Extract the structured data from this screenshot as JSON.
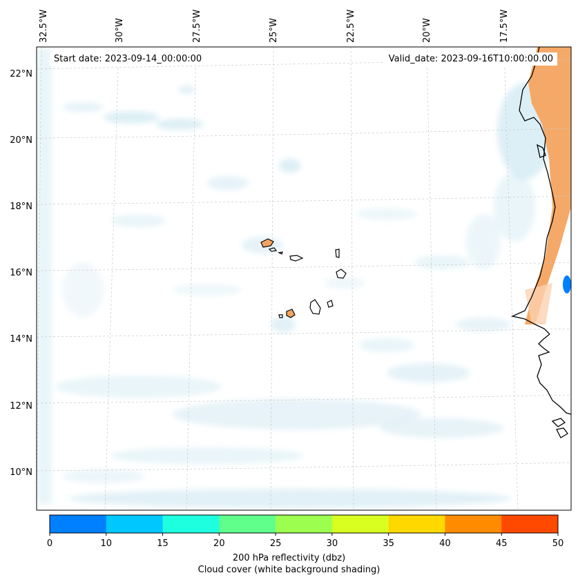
{
  "header": {
    "start_date": "Start date: 2023-09-14_00:00:00",
    "valid_date": "Valid_date: 2023-09-16T10:00:00.00"
  },
  "map": {
    "lon_labels": [
      "32.5°W",
      "30°W",
      "27.5°W",
      "25°W",
      "22.5°W",
      "20°W",
      "17.5°W"
    ],
    "lat_labels": [
      "22°N",
      "20°N",
      "18°N",
      "16°N",
      "14°N",
      "12°N",
      "10°N"
    ],
    "gridlines": "dashed",
    "land_fill_color": "#f4a460",
    "cloud_color": "#cfe8f2"
  },
  "colorbar": {
    "ticks": [
      "0",
      "10",
      "15",
      "20",
      "25",
      "30",
      "35",
      "40",
      "45",
      "50"
    ],
    "colors": [
      "#0080ff",
      "#00c8ff",
      "#1effe0",
      "#60ff8c",
      "#9cff50",
      "#d8ff20",
      "#ffd800",
      "#ff8c00",
      "#ff4800"
    ],
    "label_line1": "200 hPa reflectivity (dbz)",
    "label_line2": "Cloud cover (white background shading)"
  }
}
